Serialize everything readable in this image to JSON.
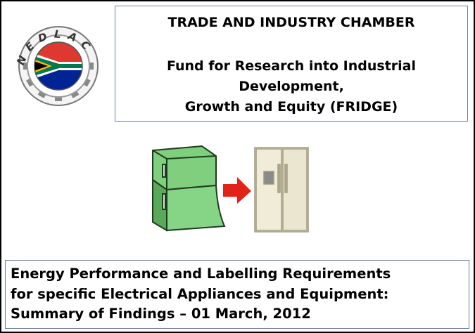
{
  "logo": {
    "text": "NEDLAC"
  },
  "header": {
    "title": "TRADE AND INDUSTRY CHAMBER",
    "subtitle_lines": [
      "Fund for Research into Industrial",
      "Development,",
      "Growth and Equity (FRIDGE)"
    ]
  },
  "footer": {
    "lines": [
      "Energy Performance and Labelling Requirements",
      "for specific Electrical Appliances and Equipment:",
      "Summary of Findings – 01 March, 2012"
    ]
  }
}
